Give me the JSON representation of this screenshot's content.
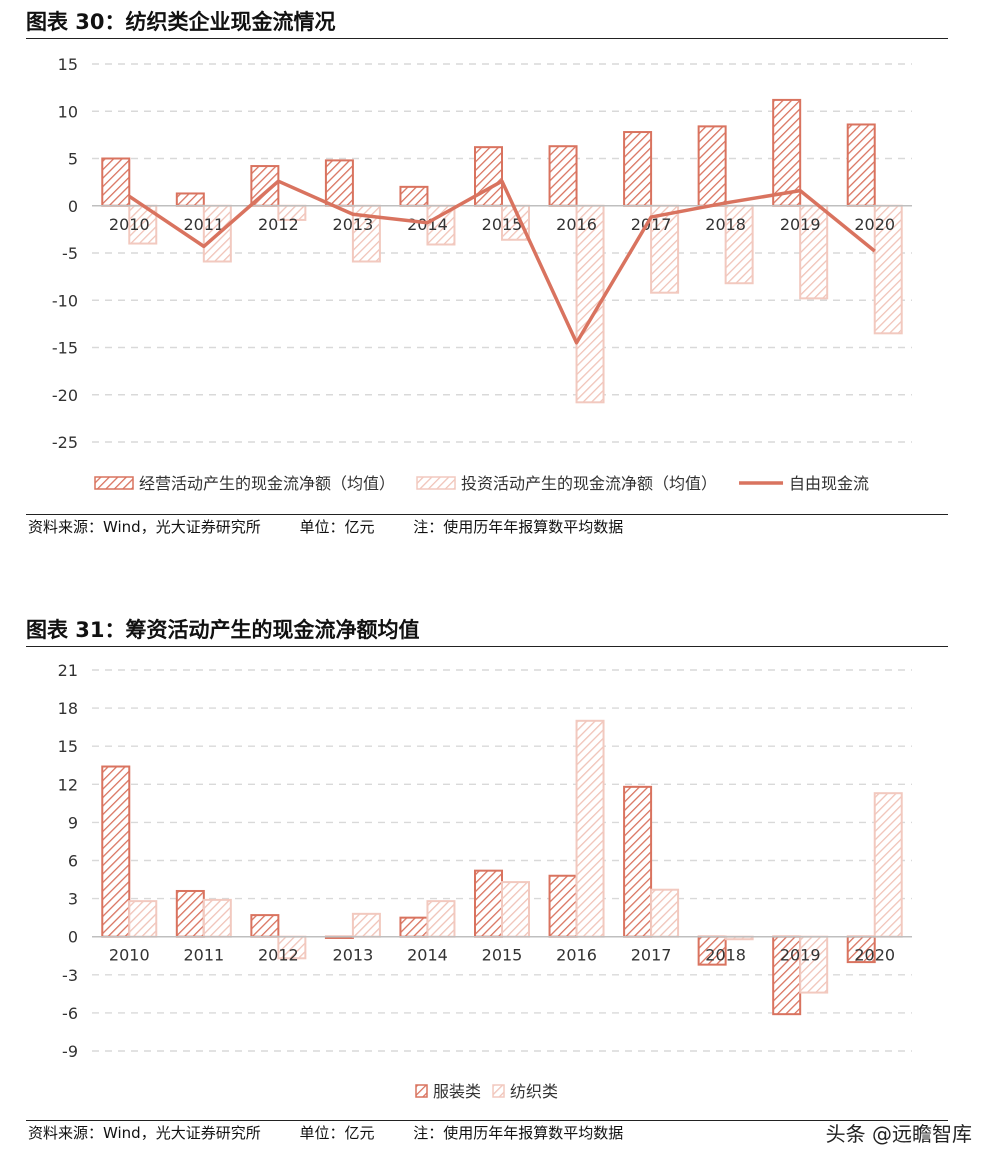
{
  "figure1": {
    "title": "图表 30：纺织类企业现金流情况",
    "source": "资料来源：Wind，光大证券研究所",
    "unit": "单位：亿元",
    "note": "注：使用历年年报算数平均数据"
  },
  "figure2": {
    "title": "图表 31：筹资活动产生的现金流净额均值",
    "source": "资料来源：Wind，光大证券研究所",
    "unit": "单位：亿元",
    "note": "注：使用历年年报算数平均数据"
  },
  "watermark": "头条 @远瞻智库",
  "colors": {
    "accent": "#D9735F",
    "light": "#F2C9BF",
    "grid": "#D9D9D9",
    "axis": "#BFBFBF"
  },
  "chart_data": [
    {
      "type": "bar",
      "categories": [
        "2010",
        "2011",
        "2012",
        "2013",
        "2014",
        "2015",
        "2016",
        "2017",
        "2018",
        "2019",
        "2020"
      ],
      "series": [
        {
          "name": "经营活动产生的现金流净额（均值）",
          "kind": "bar",
          "style": "dark",
          "values": [
            5.0,
            1.3,
            4.2,
            4.8,
            2.0,
            6.2,
            6.3,
            7.8,
            8.4,
            11.2,
            8.6
          ]
        },
        {
          "name": "投资活动产生的现金流净额（均值）",
          "kind": "bar",
          "style": "light",
          "values": [
            -4.0,
            -5.9,
            -1.5,
            -5.9,
            -4.1,
            -3.6,
            -20.8,
            -9.2,
            -8.2,
            -9.8,
            -13.5
          ]
        },
        {
          "name": "自由现金流",
          "kind": "line",
          "values": [
            1.0,
            -4.3,
            2.6,
            -0.9,
            -1.8,
            2.6,
            -14.5,
            -1.2,
            0.3,
            1.6,
            -4.8
          ]
        }
      ],
      "ylim": [
        -25,
        15
      ],
      "yticks": [
        15,
        10,
        5,
        0,
        -5,
        -10,
        -15,
        -20,
        -25
      ],
      "grid": true,
      "legend": "bottom"
    },
    {
      "type": "bar",
      "categories": [
        "2010",
        "2011",
        "2012",
        "2013",
        "2014",
        "2015",
        "2016",
        "2017",
        "2018",
        "2019",
        "2020"
      ],
      "series": [
        {
          "name": "服装类",
          "style": "dark",
          "values": [
            13.4,
            3.6,
            1.7,
            -0.1,
            1.5,
            5.2,
            4.8,
            11.8,
            -2.2,
            -6.1,
            -2.0
          ]
        },
        {
          "name": "纺织类",
          "style": "light",
          "values": [
            2.8,
            2.9,
            -1.7,
            1.8,
            2.8,
            4.3,
            17.0,
            3.7,
            -0.2,
            -4.4,
            11.3
          ]
        }
      ],
      "ylim": [
        -9,
        21
      ],
      "yticks": [
        21,
        18,
        15,
        12,
        9,
        6,
        3,
        0,
        -3,
        -6,
        -9
      ],
      "grid": true,
      "legend": "bottom"
    }
  ]
}
